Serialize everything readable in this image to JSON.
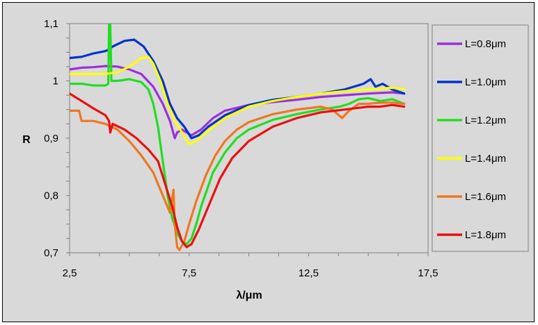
{
  "chart_data": {
    "type": "line",
    "xlabel": "λ/μm",
    "ylabel": "R",
    "xlim": [
      2.5,
      17.5
    ],
    "ylim": [
      0.7,
      1.1
    ],
    "x_ticks": [
      "2,5",
      "7,5",
      "12,5",
      "17,5"
    ],
    "x_tick_values": [
      2.5,
      7.5,
      12.5,
      17.5
    ],
    "y_ticks": [
      "0,7",
      "0,8",
      "0,9",
      "1",
      "1,1"
    ],
    "y_tick_values": [
      0.7,
      0.8,
      0.9,
      1.0,
      1.1
    ],
    "grid": false,
    "legend_position": "right",
    "series": [
      {
        "name": "L=0.8μm",
        "color": "#9b30d9",
        "points": [
          [
            2.5,
            1.02
          ],
          [
            3.0,
            1.023
          ],
          [
            3.5,
            1.024
          ],
          [
            4.0,
            1.026
          ],
          [
            4.5,
            1.025
          ],
          [
            5.0,
            1.02
          ],
          [
            5.5,
            1.012
          ],
          [
            6.0,
            0.99
          ],
          [
            6.4,
            0.96
          ],
          [
            6.7,
            0.93
          ],
          [
            6.9,
            0.9
          ],
          [
            7.0,
            0.91
          ],
          [
            7.2,
            0.915
          ],
          [
            7.4,
            0.91
          ],
          [
            7.6,
            0.905
          ],
          [
            8.0,
            0.915
          ],
          [
            8.5,
            0.935
          ],
          [
            9.0,
            0.948
          ],
          [
            10.0,
            0.958
          ],
          [
            11.0,
            0.963
          ],
          [
            12.0,
            0.967
          ],
          [
            13.0,
            0.972
          ],
          [
            14.0,
            0.975
          ],
          [
            15.0,
            0.978
          ],
          [
            16.0,
            0.98
          ],
          [
            16.5,
            0.978
          ]
        ]
      },
      {
        "name": "L=1.0μm",
        "color": "#0033cc",
        "points": [
          [
            2.5,
            1.04
          ],
          [
            3.0,
            1.042
          ],
          [
            3.5,
            1.048
          ],
          [
            4.0,
            1.052
          ],
          [
            4.15,
            1.055
          ],
          [
            4.3,
            1.06
          ],
          [
            4.8,
            1.07
          ],
          [
            5.2,
            1.072
          ],
          [
            5.6,
            1.06
          ],
          [
            6.0,
            1.035
          ],
          [
            6.4,
            1.0
          ],
          [
            6.7,
            0.96
          ],
          [
            7.0,
            0.935
          ],
          [
            7.3,
            0.92
          ],
          [
            7.6,
            0.9
          ],
          [
            7.9,
            0.905
          ],
          [
            8.3,
            0.92
          ],
          [
            9.0,
            0.94
          ],
          [
            10.0,
            0.958
          ],
          [
            11.0,
            0.967
          ],
          [
            12.0,
            0.972
          ],
          [
            13.0,
            0.978
          ],
          [
            14.0,
            0.985
          ],
          [
            14.8,
            0.995
          ],
          [
            15.1,
            1.003
          ],
          [
            15.3,
            0.99
          ],
          [
            15.6,
            0.995
          ],
          [
            16.0,
            0.985
          ],
          [
            16.5,
            0.978
          ]
        ]
      },
      {
        "name": "L=1.2μm",
        "color": "#22dd22",
        "points": [
          [
            2.5,
            0.995
          ],
          [
            3.0,
            0.995
          ],
          [
            3.5,
            0.992
          ],
          [
            4.0,
            0.992
          ],
          [
            4.12,
            0.995
          ],
          [
            4.15,
            1.1
          ],
          [
            4.2,
            1.1
          ],
          [
            4.25,
            1.0
          ],
          [
            4.5,
            1.0
          ],
          [
            5.0,
            1.003
          ],
          [
            5.5,
            0.998
          ],
          [
            5.8,
            0.985
          ],
          [
            6.0,
            0.96
          ],
          [
            6.2,
            0.92
          ],
          [
            6.4,
            0.86
          ],
          [
            6.6,
            0.8
          ],
          [
            6.8,
            0.76
          ],
          [
            7.0,
            0.735
          ],
          [
            7.2,
            0.72
          ],
          [
            7.4,
            0.715
          ],
          [
            7.6,
            0.725
          ],
          [
            7.8,
            0.75
          ],
          [
            8.0,
            0.78
          ],
          [
            8.5,
            0.84
          ],
          [
            9.0,
            0.875
          ],
          [
            9.5,
            0.9
          ],
          [
            10.0,
            0.915
          ],
          [
            11.0,
            0.932
          ],
          [
            12.0,
            0.942
          ],
          [
            13.0,
            0.95
          ],
          [
            13.8,
            0.955
          ],
          [
            14.2,
            0.96
          ],
          [
            14.6,
            0.968
          ],
          [
            15.0,
            0.97
          ],
          [
            15.5,
            0.965
          ],
          [
            16.0,
            0.968
          ],
          [
            16.5,
            0.96
          ]
        ]
      },
      {
        "name": "L=1.4μm",
        "color": "#ffff00",
        "points": [
          [
            2.5,
            1.012
          ],
          [
            3.0,
            1.012
          ],
          [
            3.5,
            1.012
          ],
          [
            4.0,
            1.012
          ],
          [
            4.5,
            1.015
          ],
          [
            5.0,
            1.025
          ],
          [
            5.5,
            1.04
          ],
          [
            5.8,
            1.042
          ],
          [
            6.0,
            1.03
          ],
          [
            6.3,
            1.0
          ],
          [
            6.6,
            0.96
          ],
          [
            6.9,
            0.93
          ],
          [
            7.2,
            0.91
          ],
          [
            7.5,
            0.89
          ],
          [
            7.8,
            0.895
          ],
          [
            8.2,
            0.91
          ],
          [
            9.0,
            0.935
          ],
          [
            10.0,
            0.955
          ],
          [
            11.0,
            0.965
          ],
          [
            12.0,
            0.972
          ],
          [
            13.0,
            0.978
          ],
          [
            14.0,
            0.982
          ],
          [
            15.0,
            0.985
          ],
          [
            16.0,
            0.988
          ],
          [
            16.5,
            0.986
          ]
        ]
      },
      {
        "name": "L=1.6μm",
        "color": "#ee7722",
        "points": [
          [
            2.5,
            0.948
          ],
          [
            2.9,
            0.948
          ],
          [
            3.0,
            0.93
          ],
          [
            3.5,
            0.93
          ],
          [
            4.0,
            0.925
          ],
          [
            4.5,
            0.915
          ],
          [
            5.0,
            0.895
          ],
          [
            5.5,
            0.87
          ],
          [
            6.0,
            0.84
          ],
          [
            6.4,
            0.8
          ],
          [
            6.7,
            0.77
          ],
          [
            6.85,
            0.81
          ],
          [
            6.9,
            0.75
          ],
          [
            7.0,
            0.71
          ],
          [
            7.1,
            0.705
          ],
          [
            7.3,
            0.72
          ],
          [
            7.5,
            0.75
          ],
          [
            7.8,
            0.79
          ],
          [
            8.2,
            0.835
          ],
          [
            8.6,
            0.87
          ],
          [
            9.0,
            0.895
          ],
          [
            9.5,
            0.915
          ],
          [
            10.0,
            0.928
          ],
          [
            11.0,
            0.942
          ],
          [
            12.0,
            0.95
          ],
          [
            13.0,
            0.955
          ],
          [
            13.5,
            0.95
          ],
          [
            13.9,
            0.935
          ],
          [
            14.2,
            0.948
          ],
          [
            14.6,
            0.96
          ],
          [
            15.0,
            0.96
          ],
          [
            15.5,
            0.962
          ],
          [
            16.0,
            0.962
          ],
          [
            16.5,
            0.96
          ]
        ]
      },
      {
        "name": "L=1.8μm",
        "color": "#e81010",
        "points": [
          [
            2.5,
            0.978
          ],
          [
            3.0,
            0.965
          ],
          [
            3.5,
            0.952
          ],
          [
            4.0,
            0.94
          ],
          [
            4.15,
            0.93
          ],
          [
            4.2,
            0.91
          ],
          [
            4.3,
            0.925
          ],
          [
            4.8,
            0.915
          ],
          [
            5.3,
            0.9
          ],
          [
            5.8,
            0.88
          ],
          [
            6.2,
            0.86
          ],
          [
            6.5,
            0.82
          ],
          [
            6.8,
            0.78
          ],
          [
            7.0,
            0.745
          ],
          [
            7.2,
            0.72
          ],
          [
            7.4,
            0.71
          ],
          [
            7.6,
            0.715
          ],
          [
            7.9,
            0.74
          ],
          [
            8.3,
            0.78
          ],
          [
            8.8,
            0.83
          ],
          [
            9.3,
            0.865
          ],
          [
            10.0,
            0.895
          ],
          [
            11.0,
            0.92
          ],
          [
            12.0,
            0.935
          ],
          [
            13.0,
            0.945
          ],
          [
            14.0,
            0.95
          ],
          [
            15.0,
            0.955
          ],
          [
            15.5,
            0.955
          ],
          [
            16.0,
            0.958
          ],
          [
            16.5,
            0.955
          ]
        ]
      }
    ]
  }
}
